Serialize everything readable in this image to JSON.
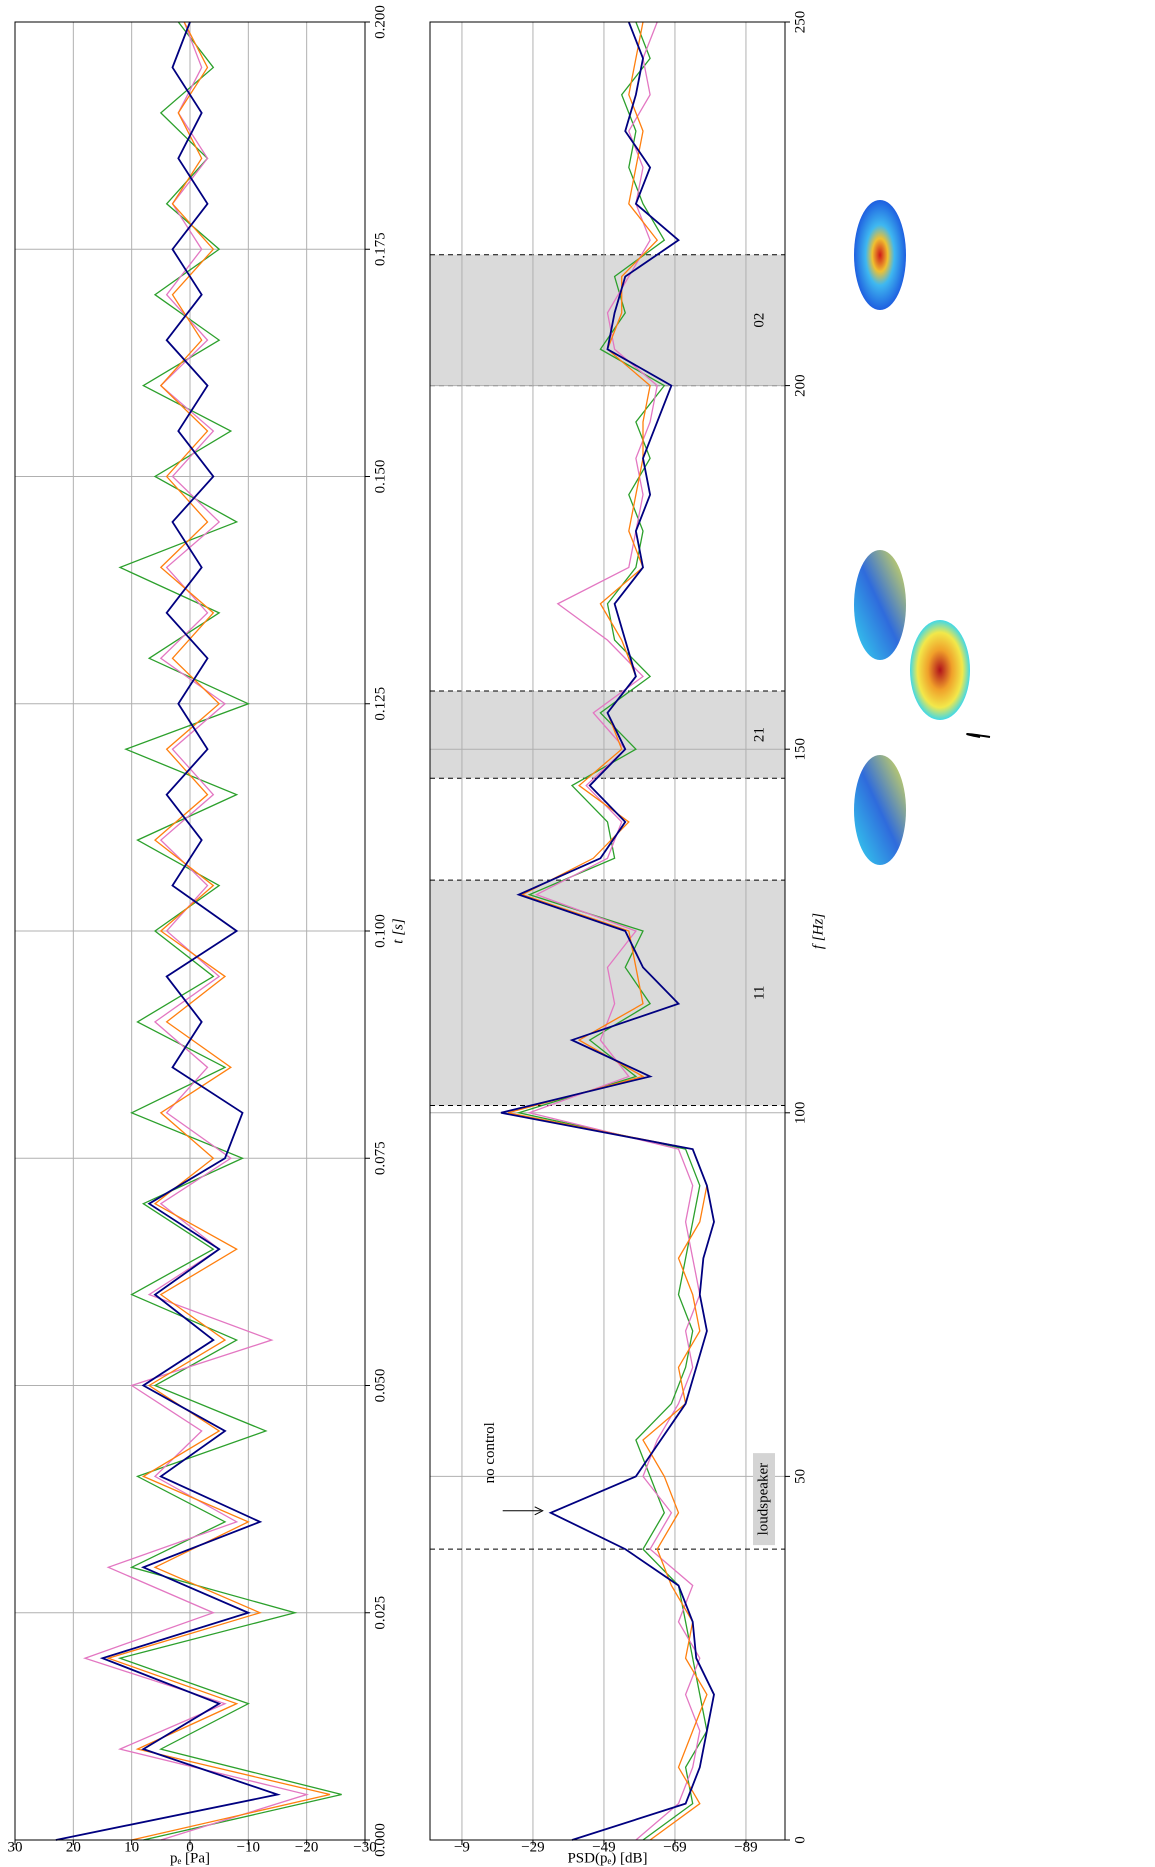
{
  "chart_data": [
    {
      "type": "line",
      "x_label": "t [s]",
      "y_label": "pₑ [Pa]",
      "x": [
        0,
        0.005,
        0.01,
        0.015,
        0.02,
        0.025,
        0.03,
        0.035,
        0.04,
        0.045,
        0.05,
        0.055,
        0.06,
        0.065,
        0.07,
        0.075,
        0.08,
        0.085,
        0.09,
        0.095,
        0.1,
        0.105,
        0.11,
        0.115,
        0.12,
        0.125,
        0.13,
        0.135,
        0.14,
        0.145,
        0.15,
        0.155,
        0.16,
        0.165,
        0.17,
        0.175,
        0.18,
        0.185,
        0.19,
        0.195,
        0.2
      ],
      "xlim": [
        0,
        0.2
      ],
      "xticks": [
        {
          "value": 0,
          "label": "0.000"
        },
        {
          "value": 0.025,
          "label": "0.025"
        },
        {
          "value": 0.05,
          "label": "0.050"
        },
        {
          "value": 0.075,
          "label": "0.075"
        },
        {
          "value": 0.1,
          "label": "0.100"
        },
        {
          "value": 0.125,
          "label": "0.125"
        },
        {
          "value": 0.15,
          "label": "0.150"
        },
        {
          "value": 0.175,
          "label": "0.175"
        },
        {
          "value": 0.2,
          "label": "0.200"
        }
      ],
      "ylim": [
        -30,
        30
      ],
      "yticks": [
        {
          "value": -30,
          "label": "−30"
        },
        {
          "value": -20,
          "label": "−20"
        },
        {
          "value": -10,
          "label": "−10"
        },
        0,
        10,
        20,
        30
      ],
      "grid": true,
      "series": [
        {
          "color": "#2ca02c",
          "values": [
            8,
            -26,
            5,
            -10,
            12,
            -18,
            10,
            -6,
            9,
            -13,
            6,
            -8,
            10,
            -4,
            8,
            -9,
            10,
            -6,
            9,
            -4,
            6,
            -5,
            9,
            -8,
            11,
            -10,
            7,
            -5,
            12,
            -8,
            6,
            -7,
            8,
            -5,
            6,
            -5,
            4,
            -3,
            5,
            -4,
            2
          ]
        },
        {
          "color": "#e377c2",
          "values": [
            5,
            -20,
            12,
            -6,
            18,
            -4,
            14,
            -8,
            6,
            -2,
            10,
            -14,
            7,
            -5,
            5,
            -7,
            4,
            -3,
            6,
            -5,
            4,
            -3,
            5,
            -4,
            3,
            -6,
            5,
            -3,
            4,
            -5,
            3,
            -4,
            5,
            -3,
            4,
            -2,
            3,
            -3,
            2,
            -2,
            1
          ]
        },
        {
          "color": "#ff7f0e",
          "values": [
            10,
            -24,
            9,
            -8,
            14,
            -12,
            6,
            -10,
            8,
            -5,
            7,
            -6,
            5,
            -8,
            6,
            -4,
            5,
            -7,
            4,
            -6,
            5,
            -4,
            6,
            -3,
            4,
            -5,
            3,
            -4,
            5,
            -3,
            4,
            -3,
            5,
            -2,
            3,
            -4,
            3,
            -2,
            2,
            -3,
            1
          ]
        },
        {
          "color": "#000080",
          "values": [
            23,
            -15,
            8,
            -5,
            15,
            -10,
            8,
            -12,
            5,
            -6,
            8,
            -4,
            6,
            -5,
            7,
            -6,
            -9,
            3,
            -2,
            4,
            -8,
            3,
            -2,
            4,
            -3,
            2,
            -3,
            4,
            -2,
            3,
            -4,
            2,
            -3,
            4,
            -2,
            3,
            -3,
            2,
            -2,
            3,
            0
          ]
        }
      ]
    },
    {
      "type": "line",
      "x_label": "f [Hz]",
      "y_label": "PSD(pₑ) [dB]",
      "x": [
        0,
        5,
        10,
        15,
        20,
        25,
        30,
        35,
        40,
        45,
        50,
        55,
        60,
        65,
        70,
        75,
        80,
        85,
        90,
        95,
        100,
        105,
        110,
        115,
        120,
        125,
        130,
        135,
        140,
        145,
        150,
        155,
        160,
        165,
        170,
        175,
        180,
        185,
        190,
        195,
        200,
        205,
        210,
        215,
        220,
        225,
        230,
        235,
        240,
        245,
        250
      ],
      "xlim": [
        0,
        250
      ],
      "xticks": [
        0,
        50,
        100,
        150,
        200,
        250
      ],
      "ylim": [
        -100,
        0
      ],
      "yticks": [
        {
          "value": -9,
          "label": "−9"
        },
        {
          "value": -29,
          "label": "−29"
        },
        {
          "value": -49,
          "label": "−49"
        },
        {
          "value": -69,
          "label": "−69"
        },
        {
          "value": -89,
          "label": "−89"
        }
      ],
      "grid": true,
      "bands": [
        {
          "label": "11",
          "range": [
            101,
            132
          ]
        },
        {
          "label": "21",
          "range": [
            146,
            158
          ]
        },
        {
          "label": "02",
          "range": [
            200,
            218
          ]
        }
      ],
      "loudspeaker": {
        "label": "loudspeaker",
        "x": 40
      },
      "annotation": {
        "label": "no control",
        "x": 45,
        "y": -34
      },
      "series": [
        {
          "color": "#2ca02c",
          "values": [
            -60,
            -74,
            -72,
            -78,
            -76,
            -74,
            -72,
            -70,
            -60,
            -66,
            -62,
            -58,
            -68,
            -72,
            -74,
            -70,
            -72,
            -74,
            -76,
            -72,
            -25,
            -58,
            -45,
            -62,
            -55,
            -60,
            -28,
            -52,
            -50,
            -40,
            -58,
            -48,
            -62,
            -52,
            -50,
            -58,
            -60,
            -56,
            -62,
            -58,
            -66,
            -48,
            -55,
            -52,
            -66,
            -60,
            -56,
            -58,
            -54,
            -62,
            -58
          ]
        },
        {
          "color": "#e377c2",
          "values": [
            -58,
            -70,
            -74,
            -76,
            -72,
            -76,
            -70,
            -74,
            -62,
            -68,
            -60,
            -64,
            -70,
            -74,
            -72,
            -76,
            -74,
            -72,
            -74,
            -70,
            -28,
            -56,
            -48,
            -52,
            -50,
            -58,
            -30,
            -50,
            -54,
            -44,
            -55,
            -46,
            -60,
            -50,
            -36,
            -56,
            -58,
            -60,
            -58,
            -62,
            -64,
            -52,
            -50,
            -56,
            -62,
            -58,
            -60,
            -56,
            -62,
            -60,
            -64
          ]
        },
        {
          "color": "#ff7f0e",
          "values": [
            -62,
            -76,
            -70,
            -74,
            -78,
            -72,
            -74,
            -68,
            -64,
            -70,
            -66,
            -60,
            -72,
            -70,
            -76,
            -74,
            -70,
            -76,
            -78,
            -74,
            -22,
            -60,
            -42,
            -60,
            -58,
            -56,
            -26,
            -46,
            -56,
            -42,
            -54,
            -50,
            -58,
            -54,
            -48,
            -60,
            -56,
            -58,
            -60,
            -60,
            -62,
            -50,
            -54,
            -54,
            -64,
            -56,
            -58,
            -60,
            -56,
            -58,
            -60
          ]
        },
        {
          "color": "#000080",
          "values": [
            -40,
            -72,
            -76,
            -78,
            -80,
            -75,
            -74,
            -70,
            -55,
            -34,
            -58,
            -65,
            -72,
            -75,
            -78,
            -76,
            -77,
            -80,
            -78,
            -74,
            -20,
            -62,
            -40,
            -70,
            -60,
            -55,
            -25,
            -48,
            -55,
            -45,
            -55,
            -50,
            -58,
            -55,
            -52,
            -60,
            -58,
            -62,
            -60,
            -64,
            -68,
            -50,
            -52,
            -55,
            -70,
            -58,
            -62,
            -55,
            -58,
            -60,
            -56
          ]
        }
      ]
    }
  ]
}
